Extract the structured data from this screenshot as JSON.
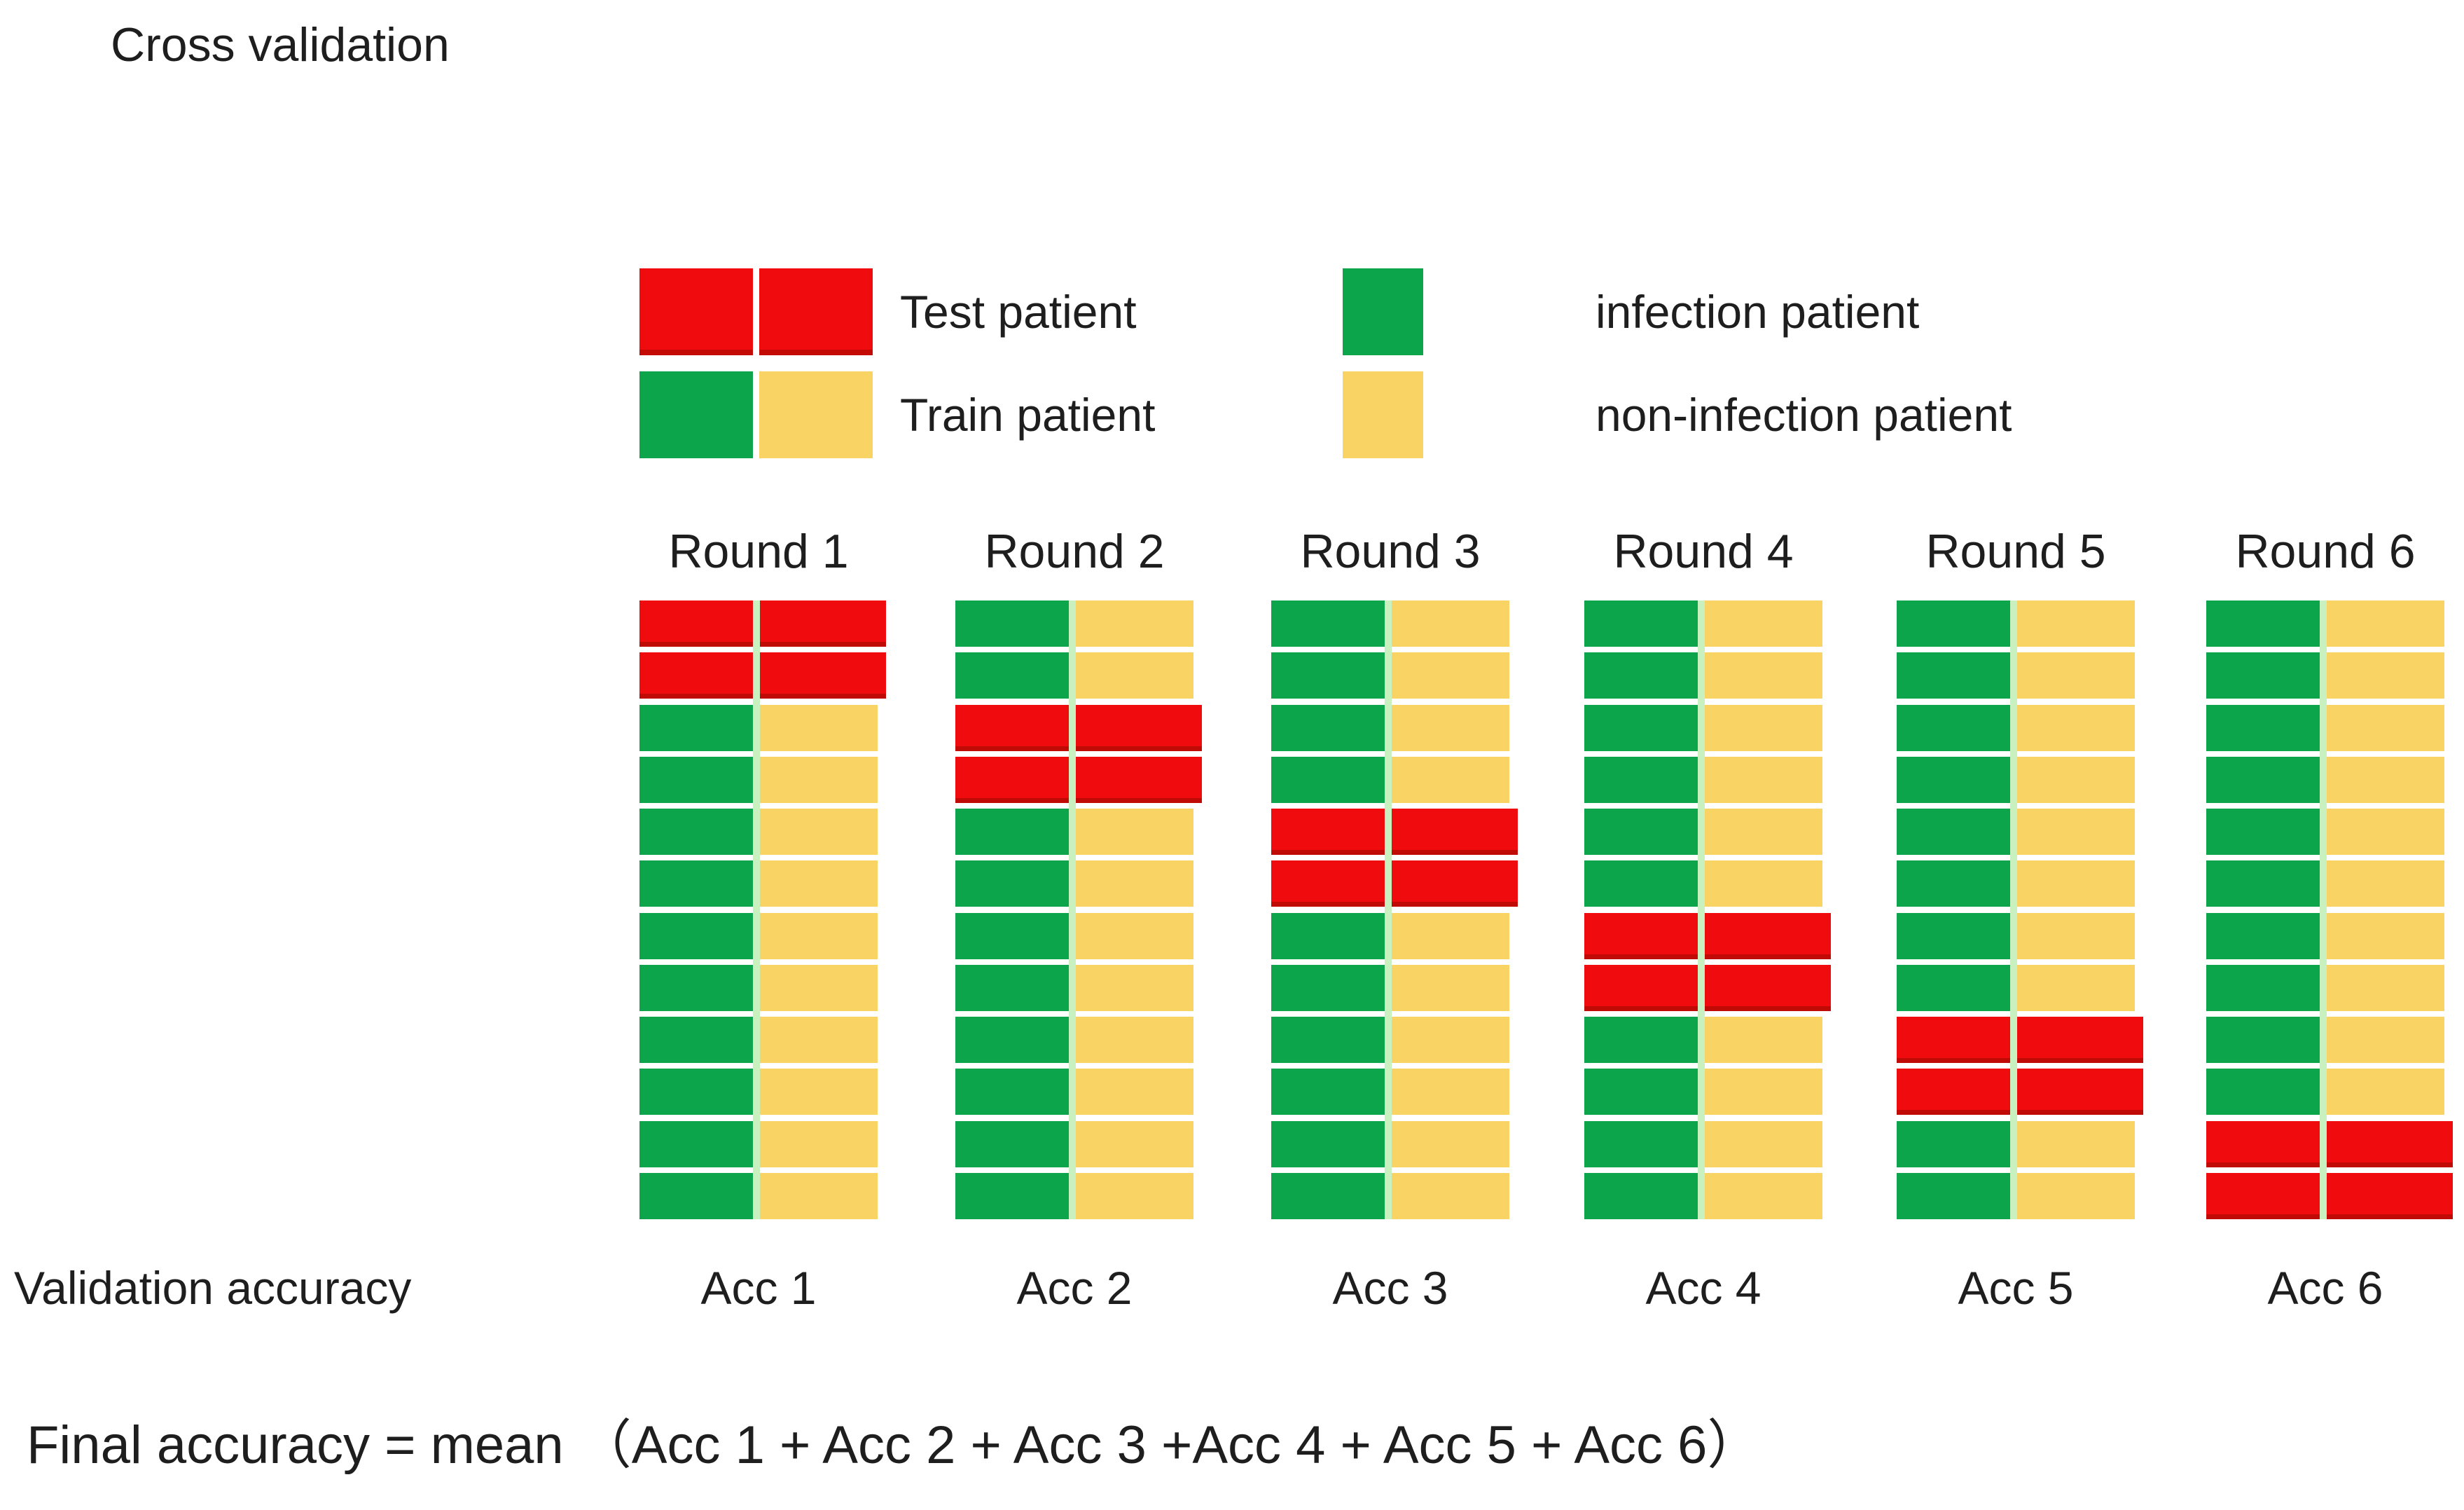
{
  "title": "Cross validation",
  "colors": {
    "test_red": "#EF0B0E",
    "test_red_edge": "#C30A05",
    "infection_green": "#0DA54C",
    "non_infection_yellow": "#FAD365",
    "column_divider": "#C9F0BF",
    "text": "#1e1e1e"
  },
  "legend": {
    "items": [
      {
        "label": "Test patient",
        "swatches": [
          "red",
          "red"
        ]
      },
      {
        "label": "Train patient",
        "swatches": [
          "green",
          "yellow"
        ]
      },
      {
        "label": "infection patient",
        "swatches": [
          "green"
        ]
      },
      {
        "label": "non-infection patient",
        "swatches": [
          "yellow"
        ]
      }
    ]
  },
  "cv": {
    "num_rows": 12,
    "columns": [
      "infection patient",
      "non-infection patient"
    ],
    "rounds": [
      {
        "label": "Round 1",
        "acc": "Acc 1",
        "test_rows": [
          1,
          2
        ]
      },
      {
        "label": "Round 2",
        "acc": "Acc 2",
        "test_rows": [
          3,
          4
        ]
      },
      {
        "label": "Round 3",
        "acc": "Acc 3",
        "test_rows": [
          5,
          6
        ]
      },
      {
        "label": "Round 4",
        "acc": "Acc 4",
        "test_rows": [
          7,
          8
        ]
      },
      {
        "label": "Round 5",
        "acc": "Acc 5",
        "test_rows": [
          9,
          10
        ]
      },
      {
        "label": "Round 6",
        "acc": "Acc 6",
        "test_rows": [
          11,
          12
        ]
      }
    ]
  },
  "validation_accuracy_label": "Validation accuracy",
  "final_formula": "Final accuracy = mean （Acc 1 + Acc 2 + Acc 3 +Acc 4 + Acc 5 + Acc 6）"
}
